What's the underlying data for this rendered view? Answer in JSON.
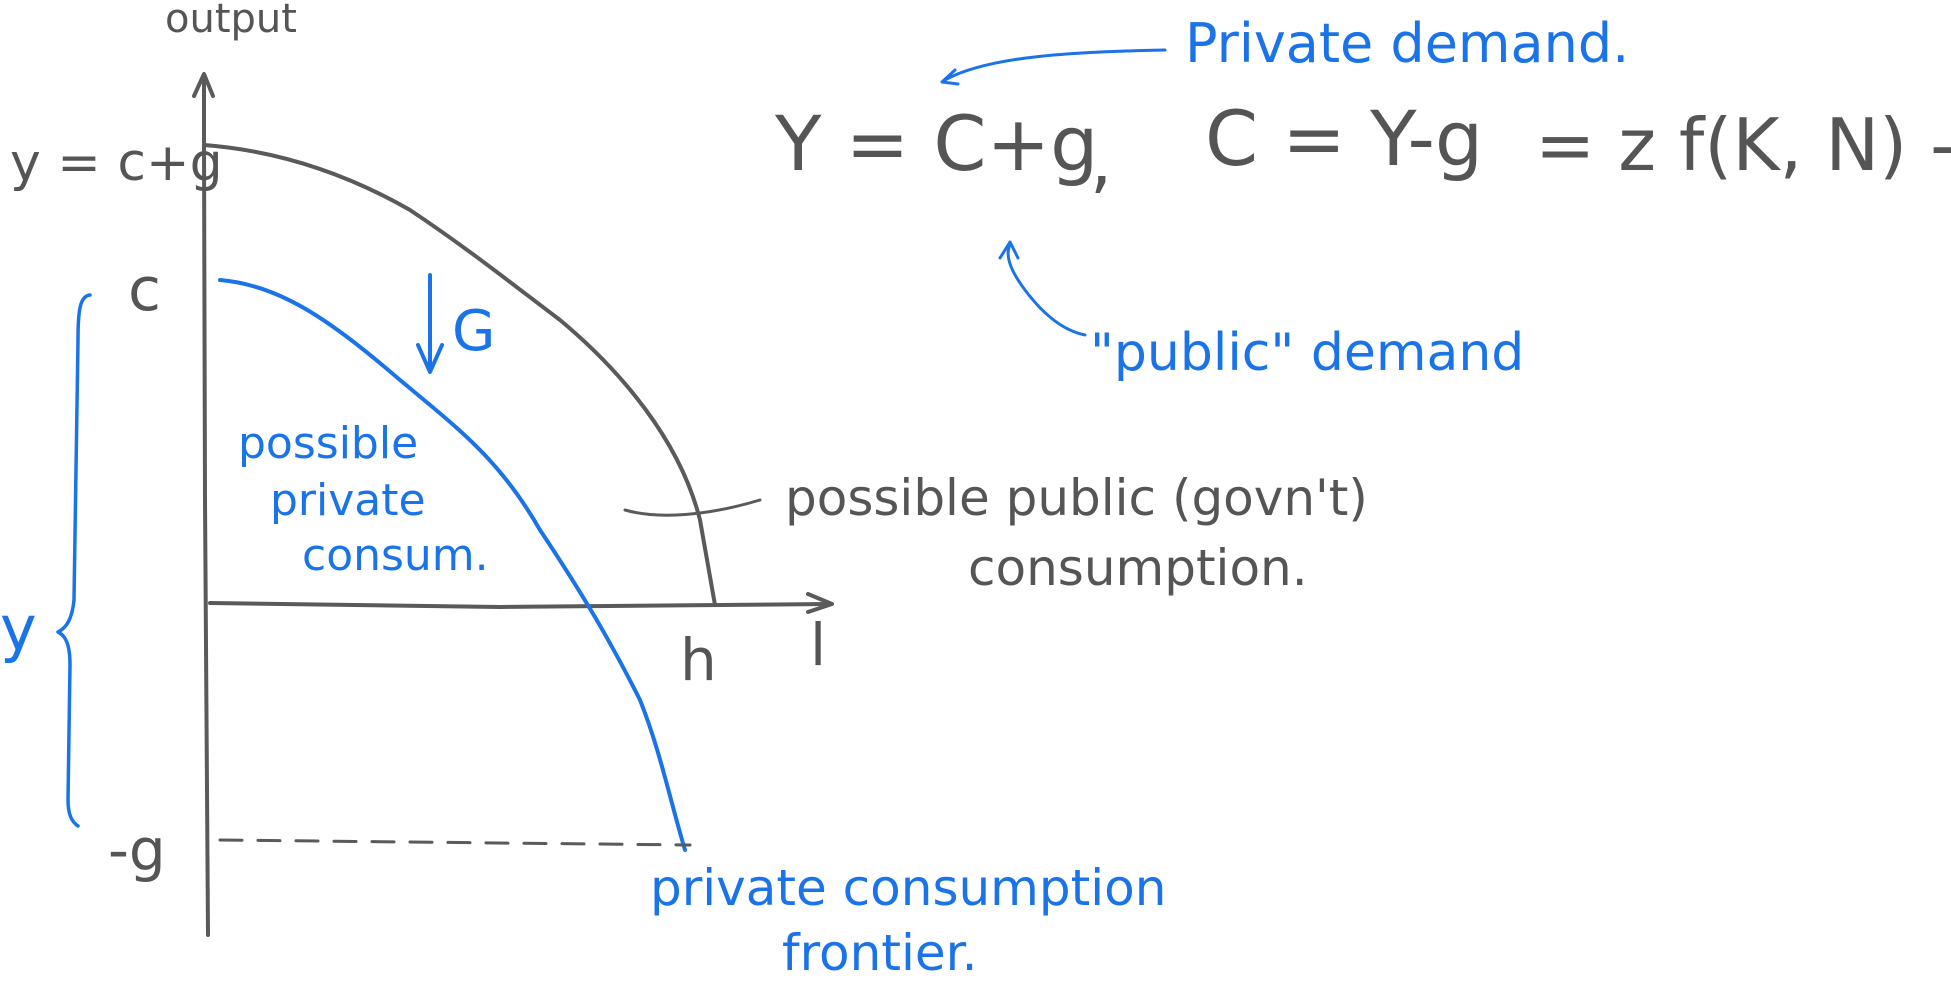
{
  "colors": {
    "gray_ink": "#555555",
    "blue_ink": "#1a73e8",
    "background": "#ffffff"
  },
  "axes": {
    "y_axis_label": "output",
    "x_axis_label": "l",
    "x_intercept_label": "h",
    "y_tick_top": "y = c+g",
    "y_tick_c": "c",
    "y_tick_neg_g": "-g",
    "brace_label": "y",
    "shift_label": "G"
  },
  "annotations": {
    "possible_private_line1": "possible",
    "possible_private_line2": "private",
    "possible_private_line3": "consum.",
    "possible_public_line1": "possible public (govn't)",
    "possible_public_line2": "consumption.",
    "frontier_line1": "private consumption",
    "frontier_line2": "frontier."
  },
  "equations": {
    "eq_y": "Y = C+g",
    "eq_sep": ",",
    "eq_c": "C = Y-g",
    "eq_f": "= z f(K, N) - g",
    "private_demand": "Private demand.",
    "public_demand": "\"public\" demand"
  }
}
